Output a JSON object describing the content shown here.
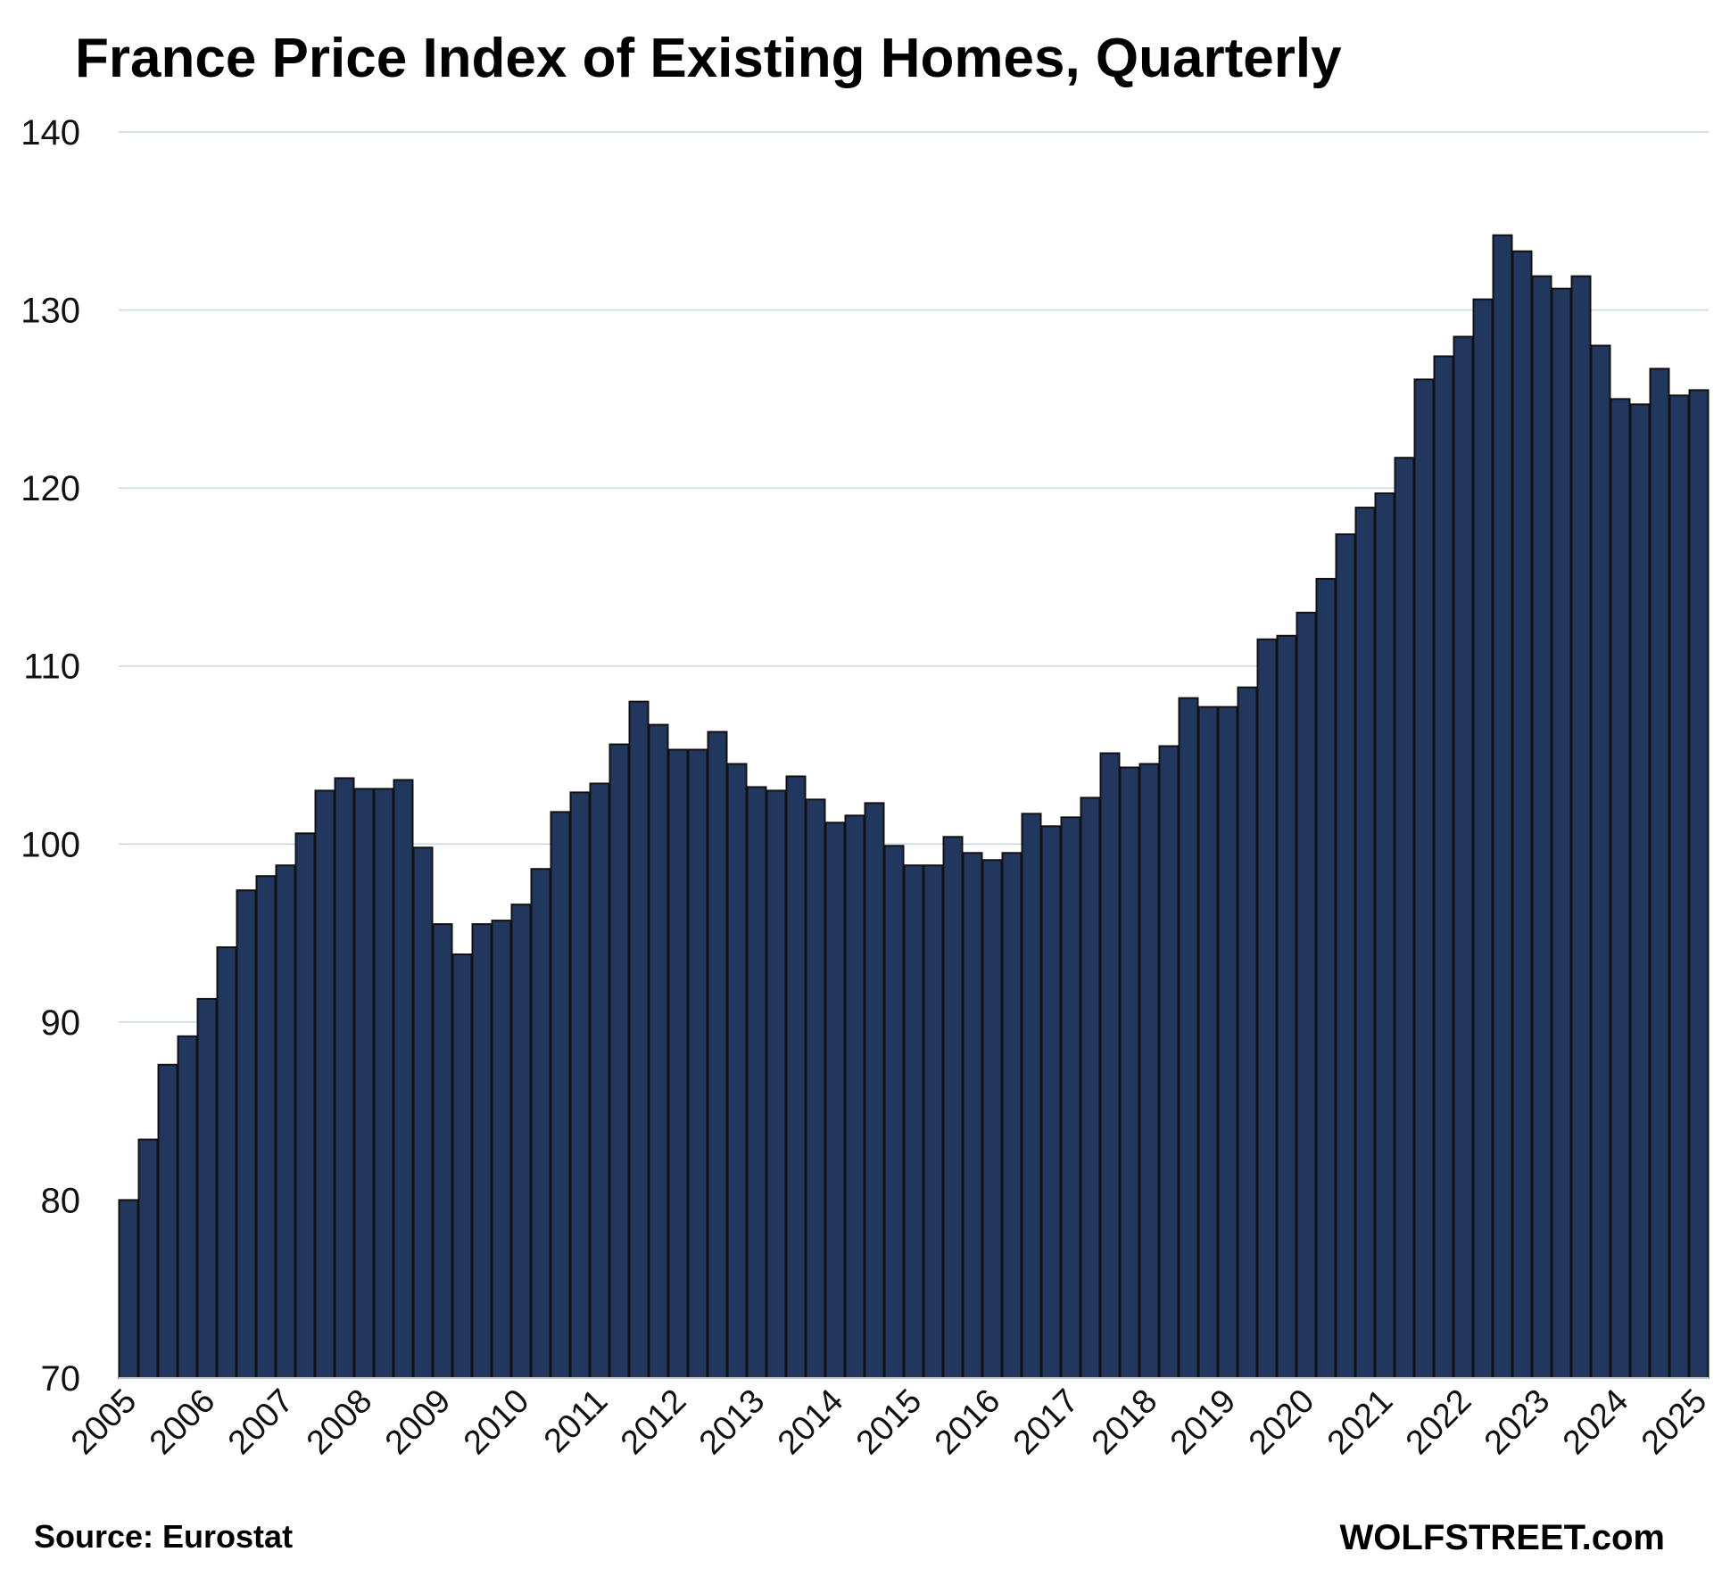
{
  "chart_data": {
    "type": "bar",
    "title": "France Price Index of Existing Homes, Quarterly",
    "xlabel": "",
    "ylabel": "",
    "ylim": [
      70,
      140
    ],
    "yticks": [
      "70",
      "80",
      "90",
      "100",
      "110",
      "120",
      "130",
      "140"
    ],
    "xticks": [
      "2005",
      "2006",
      "2007",
      "2008",
      "2009",
      "2010",
      "2011",
      "2012",
      "2013",
      "2014",
      "2015",
      "2016",
      "2017",
      "2018",
      "2019",
      "2020",
      "2021",
      "2022",
      "2023",
      "2024",
      "2025"
    ],
    "grid": true,
    "legend": "none",
    "bar_color": "#22375e",
    "bar_edge_color": "#111111",
    "grid_color": "#c9d6e4",
    "categories": [
      "2005-Q1",
      "2005-Q2",
      "2005-Q3",
      "2005-Q4",
      "2006-Q1",
      "2006-Q2",
      "2006-Q3",
      "2006-Q4",
      "2007-Q1",
      "2007-Q2",
      "2007-Q3",
      "2007-Q4",
      "2008-Q1",
      "2008-Q2",
      "2008-Q3",
      "2008-Q4",
      "2009-Q1",
      "2009-Q2",
      "2009-Q3",
      "2009-Q4",
      "2010-Q1",
      "2010-Q2",
      "2010-Q3",
      "2010-Q4",
      "2011-Q1",
      "2011-Q2",
      "2011-Q3",
      "2011-Q4",
      "2012-Q1",
      "2012-Q2",
      "2012-Q3",
      "2012-Q4",
      "2013-Q1",
      "2013-Q2",
      "2013-Q3",
      "2013-Q4",
      "2014-Q1",
      "2014-Q2",
      "2014-Q3",
      "2014-Q4",
      "2015-Q1",
      "2015-Q2",
      "2015-Q3",
      "2015-Q4",
      "2016-Q1",
      "2016-Q2",
      "2016-Q3",
      "2016-Q4",
      "2017-Q1",
      "2017-Q2",
      "2017-Q3",
      "2017-Q4",
      "2018-Q1",
      "2018-Q2",
      "2018-Q3",
      "2018-Q4",
      "2019-Q1",
      "2019-Q2",
      "2019-Q3",
      "2019-Q4",
      "2020-Q1",
      "2020-Q2",
      "2020-Q3",
      "2020-Q4",
      "2021-Q1",
      "2021-Q2",
      "2021-Q3",
      "2021-Q4",
      "2022-Q1",
      "2022-Q2",
      "2022-Q3",
      "2022-Q4",
      "2023-Q1",
      "2023-Q2",
      "2023-Q3",
      "2023-Q4",
      "2024-Q1",
      "2024-Q2",
      "2024-Q3",
      "2024-Q4",
      "2025-Q1"
    ],
    "values": [
      80.0,
      83.4,
      87.6,
      89.2,
      91.3,
      94.2,
      97.4,
      98.2,
      98.8,
      100.6,
      103.0,
      103.7,
      103.1,
      103.1,
      103.6,
      99.8,
      95.5,
      93.8,
      95.5,
      95.7,
      96.6,
      98.6,
      101.8,
      102.9,
      103.4,
      105.6,
      108.0,
      106.7,
      105.3,
      105.3,
      106.3,
      104.5,
      103.2,
      103.0,
      103.8,
      102.5,
      101.2,
      101.6,
      102.3,
      99.9,
      98.8,
      98.8,
      100.4,
      99.5,
      99.1,
      99.5,
      101.7,
      101.0,
      101.5,
      102.6,
      105.1,
      104.3,
      104.5,
      105.5,
      108.2,
      107.7,
      107.7,
      108.8,
      111.5,
      111.7,
      113.0,
      114.9,
      117.4,
      118.9,
      119.7,
      121.7,
      126.1,
      127.4,
      128.5,
      130.6,
      134.2,
      133.3,
      131.9,
      131.2,
      131.9,
      128.0,
      125.0,
      124.7,
      126.7,
      125.2,
      125.5
    ]
  },
  "footer": {
    "source": "Source: Eurostat",
    "brand": "WOLFSTREET.com"
  }
}
